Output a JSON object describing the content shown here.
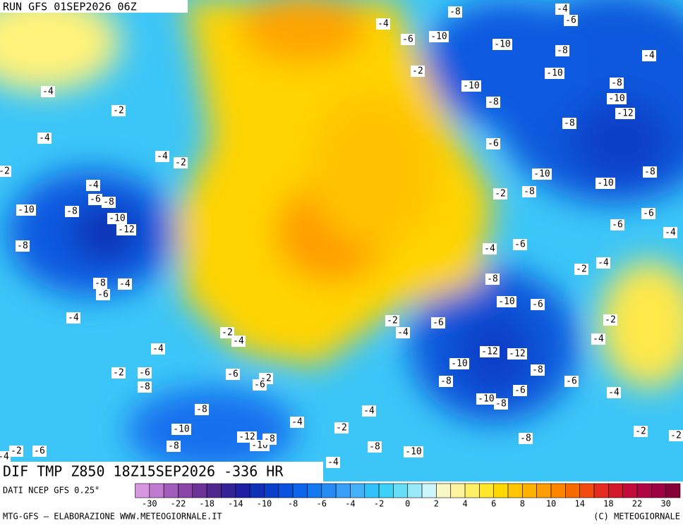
{
  "header": {
    "run": "RUN GFS 01SEP2026 06Z"
  },
  "map": {
    "title": "DIF TMP Z850 18Z15SEP2026 -336 HR",
    "contour_labels": [
      -8,
      -4,
      -6,
      -4,
      -6,
      -10,
      -10,
      -8,
      -4,
      -2,
      -10,
      -10,
      -8,
      -10,
      -8,
      -12,
      -8,
      -6,
      -10,
      -8,
      -8,
      -10,
      -2,
      -6,
      -6,
      -4,
      -4,
      -6,
      -2,
      -4,
      -8,
      -10,
      -6,
      -2,
      -4,
      -6,
      -2,
      -4,
      -12,
      -12,
      -10,
      -8,
      -8,
      -6,
      -6,
      -4,
      -10,
      -8,
      -2,
      -2,
      -8,
      -10,
      -8,
      -2,
      -4,
      -4,
      -4,
      -12,
      -10,
      -8,
      -10,
      -8,
      -8,
      -6,
      -2,
      -8,
      -6,
      -2,
      -6,
      -2,
      -6,
      -4,
      -4,
      -2,
      -4,
      -6,
      -8,
      -4,
      -8,
      -10,
      -8,
      -6,
      -8,
      -10,
      -12,
      -4,
      -4,
      -2,
      -2,
      -4,
      -2,
      -4,
      -4
    ]
  },
  "legend": {
    "source": "DATI NCEP GFS 0.25°",
    "ticks": [
      -30,
      -22,
      -18,
      -14,
      -10,
      -8,
      -6,
      -4,
      -2,
      0,
      2,
      4,
      6,
      8,
      10,
      14,
      18,
      22,
      30
    ],
    "colors": [
      "#d896e0",
      "#c07ad0",
      "#a45cbc",
      "#8a44a8",
      "#6e3298",
      "#50288e",
      "#362298",
      "#2020a4",
      "#1030b8",
      "#0a40cc",
      "#0a52de",
      "#0c64ea",
      "#1478f0",
      "#268cf4",
      "#38a0f8",
      "#44b2fa",
      "#30c2fa",
      "#3cd2f8",
      "#66def8",
      "#98eaf8",
      "#ccf6fa",
      "#f8f8c4",
      "#fff49e",
      "#fff064",
      "#ffe82a",
      "#ffd800",
      "#ffc600",
      "#ffb200",
      "#ff9c00",
      "#ff8400",
      "#f86a00",
      "#f04c10",
      "#e42c20",
      "#d4182c",
      "#c40c3c",
      "#b00444",
      "#9c0040",
      "#880038"
    ]
  },
  "footer": {
    "left": "MTG-GFS — ELABORAZIONE WWW.METEOGIORNALE.IT",
    "right": "(C) METEOGIORNALE"
  }
}
